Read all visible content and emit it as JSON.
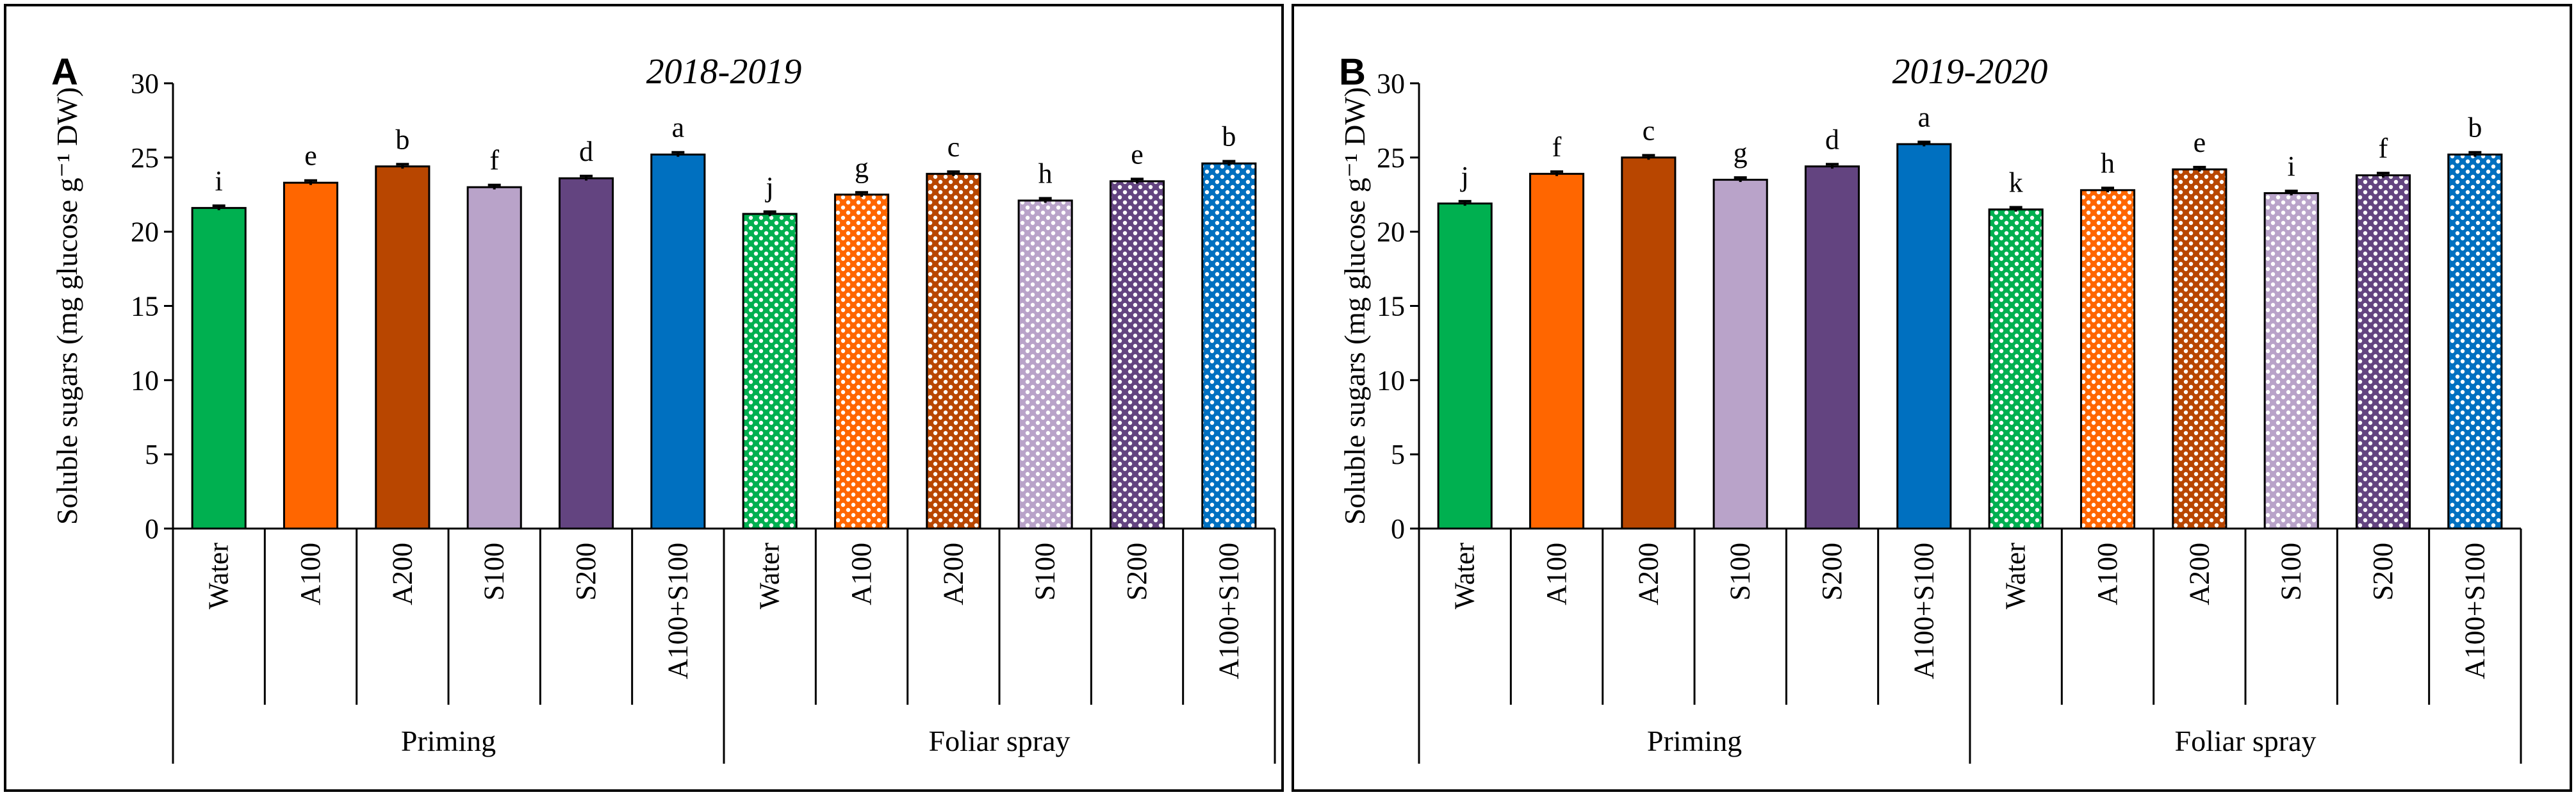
{
  "chart_data": [
    {
      "type": "bar",
      "panel_label": "A",
      "title": "2018-2019",
      "ylabel": "Soluble sugars (mg glucose g⁻¹ DW)",
      "ylim": [
        0,
        30
      ],
      "yticks": [
        0,
        5,
        10,
        15,
        20,
        25,
        30
      ],
      "categories": [
        "Water",
        "A100",
        "A200",
        "S100",
        "S200",
        "A100+S100",
        "Water",
        "A100",
        "A200",
        "S100",
        "S200",
        "A100+S100"
      ],
      "groups": [
        {
          "label": "Priming",
          "count": 6
        },
        {
          "label": "Foliar spray",
          "count": 6
        }
      ],
      "values": [
        21.6,
        23.3,
        24.4,
        23.0,
        23.6,
        25.2,
        21.2,
        22.5,
        23.9,
        22.1,
        23.4,
        24.6
      ],
      "errors": [
        0.15,
        0.15,
        0.15,
        0.15,
        0.15,
        0.15,
        0.15,
        0.15,
        0.15,
        0.15,
        0.15,
        0.15
      ],
      "letters": [
        "i",
        "e",
        "b",
        "f",
        "d",
        "a",
        "j",
        "g",
        "c",
        "h",
        "e",
        "b"
      ],
      "colors": [
        "#00b050",
        "#ff6600",
        "#b84600",
        "#b9a3c9",
        "#634480",
        "#0070c0",
        "#00b050",
        "#ff6600",
        "#b84600",
        "#b9a3c9",
        "#634480",
        "#0070c0"
      ],
      "patterned": [
        false,
        false,
        false,
        false,
        false,
        false,
        true,
        true,
        true,
        true,
        true,
        true
      ]
    },
    {
      "type": "bar",
      "panel_label": "B",
      "title": "2019-2020",
      "ylabel": "Soluble sugars (mg glucose g⁻¹ DW)",
      "ylim": [
        0,
        30
      ],
      "yticks": [
        0,
        5,
        10,
        15,
        20,
        25,
        30
      ],
      "categories": [
        "Water",
        "A100",
        "A200",
        "S100",
        "S200",
        "A100+S100",
        "Water",
        "A100",
        "A200",
        "S100",
        "S200",
        "A100+S100"
      ],
      "groups": [
        {
          "label": "Priming",
          "count": 6
        },
        {
          "label": "Foliar spray",
          "count": 6
        }
      ],
      "values": [
        21.9,
        23.9,
        25.0,
        23.5,
        24.4,
        25.9,
        21.5,
        22.8,
        24.2,
        22.6,
        23.8,
        25.2
      ],
      "errors": [
        0.15,
        0.15,
        0.15,
        0.15,
        0.15,
        0.15,
        0.15,
        0.15,
        0.15,
        0.15,
        0.15,
        0.15
      ],
      "letters": [
        "j",
        "f",
        "c",
        "g",
        "d",
        "a",
        "k",
        "h",
        "e",
        "i",
        "f",
        "b"
      ],
      "colors": [
        "#00b050",
        "#ff6600",
        "#b84600",
        "#b9a3c9",
        "#634480",
        "#0070c0",
        "#00b050",
        "#ff6600",
        "#b84600",
        "#b9a3c9",
        "#634480",
        "#0070c0"
      ],
      "patterned": [
        false,
        false,
        false,
        false,
        false,
        false,
        true,
        true,
        true,
        true,
        true,
        true
      ]
    }
  ]
}
